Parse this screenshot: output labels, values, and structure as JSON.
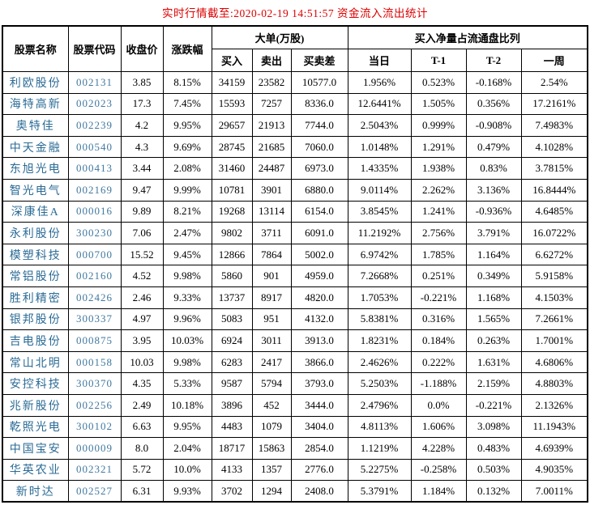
{
  "title": "实时行情截至:2020-02-19 14:51:57 资金流入流出统计",
  "colors": {
    "title_text": "#dd0000",
    "header_text": "#000000",
    "body_text": "#000000",
    "stock_name_text": "#2b6b95",
    "stock_code_text": "#41789f",
    "border": "#000000",
    "background": "#ffffff"
  },
  "table": {
    "headers": {
      "stock_name": "股票名称",
      "stock_code": "股票代码",
      "close_price": "收盘价",
      "change_pct": "涨跌幅",
      "large_orders_group": "大单(万股)",
      "buy": "买入",
      "sell": "卖出",
      "buy_sell_diff": "买卖差",
      "net_buy_ratio_group": "买入净量占流通盘比列",
      "today": "当日",
      "t_minus_1": "T-1",
      "t_minus_2": "T-2",
      "week": "一周"
    },
    "column_names": [
      "stock-name",
      "stock-code",
      "close-price",
      "change-pct",
      "buy",
      "sell",
      "buy-sell-diff",
      "ratio-today",
      "ratio-t-1",
      "ratio-t-2",
      "ratio-week"
    ],
    "rows": [
      [
        "利欧股份",
        "002131",
        "3.85",
        "8.15%",
        "34159",
        "23582",
        "10577.0",
        "1.956%",
        "0.523%",
        "-0.168%",
        "2.54%"
      ],
      [
        "海特高新",
        "002023",
        "17.3",
        "7.45%",
        "15593",
        "7257",
        "8336.0",
        "12.6441%",
        "1.505%",
        "0.356%",
        "17.2161%"
      ],
      [
        "奥特佳",
        "002239",
        "4.2",
        "9.95%",
        "29657",
        "21913",
        "7744.0",
        "2.5043%",
        "0.999%",
        "-0.908%",
        "7.4983%"
      ],
      [
        "中天金融",
        "000540",
        "4.3",
        "9.69%",
        "28745",
        "21685",
        "7060.0",
        "1.0148%",
        "1.291%",
        "0.479%",
        "4.1028%"
      ],
      [
        "东旭光电",
        "000413",
        "3.44",
        "2.08%",
        "31460",
        "24487",
        "6973.0",
        "1.4335%",
        "1.938%",
        "0.83%",
        "3.7815%"
      ],
      [
        "智光电气",
        "002169",
        "9.47",
        "9.99%",
        "10781",
        "3901",
        "6880.0",
        "9.0114%",
        "2.262%",
        "3.136%",
        "16.8444%"
      ],
      [
        "深康佳A",
        "000016",
        "9.89",
        "8.21%",
        "19268",
        "13114",
        "6154.0",
        "3.8545%",
        "1.241%",
        "-0.936%",
        "4.6485%"
      ],
      [
        "永利股份",
        "300230",
        "7.06",
        "2.47%",
        "9802",
        "3711",
        "6091.0",
        "11.2192%",
        "2.756%",
        "3.791%",
        "16.0722%"
      ],
      [
        "模塑科技",
        "000700",
        "15.52",
        "9.45%",
        "12866",
        "7864",
        "5002.0",
        "6.9742%",
        "1.785%",
        "1.164%",
        "6.6272%"
      ],
      [
        "常铝股份",
        "002160",
        "4.52",
        "9.98%",
        "5860",
        "901",
        "4959.0",
        "7.2668%",
        "0.251%",
        "0.349%",
        "5.9158%"
      ],
      [
        "胜利精密",
        "002426",
        "2.46",
        "9.33%",
        "13737",
        "8917",
        "4820.0",
        "1.7053%",
        "-0.221%",
        "1.168%",
        "4.1503%"
      ],
      [
        "银邦股份",
        "300337",
        "4.97",
        "9.96%",
        "5083",
        "951",
        "4132.0",
        "5.8381%",
        "0.316%",
        "1.565%",
        "7.2661%"
      ],
      [
        "吉电股份",
        "000875",
        "3.95",
        "10.03%",
        "6924",
        "3011",
        "3913.0",
        "1.8231%",
        "0.184%",
        "0.263%",
        "1.7001%"
      ],
      [
        "常山北明",
        "000158",
        "10.03",
        "9.98%",
        "6283",
        "2417",
        "3866.0",
        "2.4626%",
        "0.222%",
        "1.631%",
        "4.6806%"
      ],
      [
        "安控科技",
        "300370",
        "4.35",
        "5.33%",
        "9587",
        "5794",
        "3793.0",
        "5.2503%",
        "-1.188%",
        "2.159%",
        "4.8803%"
      ],
      [
        "兆新股份",
        "002256",
        "2.49",
        "10.18%",
        "3896",
        "452",
        "3444.0",
        "2.4796%",
        "0.0%",
        "-0.221%",
        "2.1326%"
      ],
      [
        "乾照光电",
        "300102",
        "6.63",
        "9.95%",
        "4483",
        "1079",
        "3404.0",
        "4.8113%",
        "1.606%",
        "3.098%",
        "11.1943%"
      ],
      [
        "中国宝安",
        "000009",
        "8.0",
        "2.04%",
        "18717",
        "15863",
        "2854.0",
        "1.1219%",
        "4.228%",
        "0.483%",
        "4.6939%"
      ],
      [
        "华英农业",
        "002321",
        "5.72",
        "10.0%",
        "4133",
        "1357",
        "2776.0",
        "5.2275%",
        "-0.258%",
        "0.503%",
        "4.9035%"
      ],
      [
        "新时达",
        "002527",
        "6.31",
        "9.93%",
        "3702",
        "1294",
        "2408.0",
        "5.3791%",
        "1.184%",
        "0.132%",
        "7.0011%"
      ]
    ]
  }
}
